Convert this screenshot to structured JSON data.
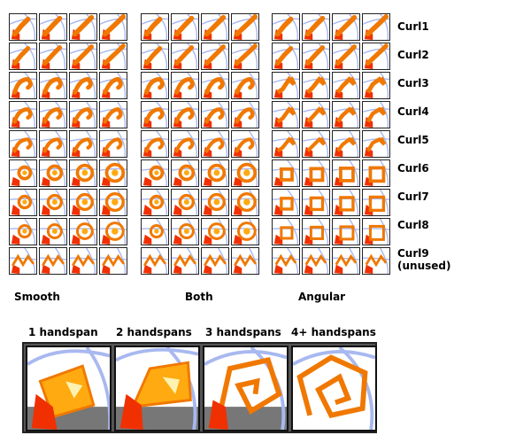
{
  "row_labels": [
    "Curl1",
    "Curl2",
    "Curl3",
    "Curl4",
    "Curl5",
    "Curl6",
    "Curl7",
    "Curl8",
    "Curl9",
    "(unused)"
  ],
  "column_labels": [
    "Smooth",
    "Both",
    "Angular"
  ],
  "handspan_labels": [
    "1 handspan",
    "2 handspans",
    "3 handspans",
    "4+ handspans"
  ],
  "colors": {
    "orange": "#f07800",
    "light_orange": "#ffaa10",
    "red": "#f03000",
    "arc_blue": "#a8b8f0",
    "border": "#222222"
  }
}
